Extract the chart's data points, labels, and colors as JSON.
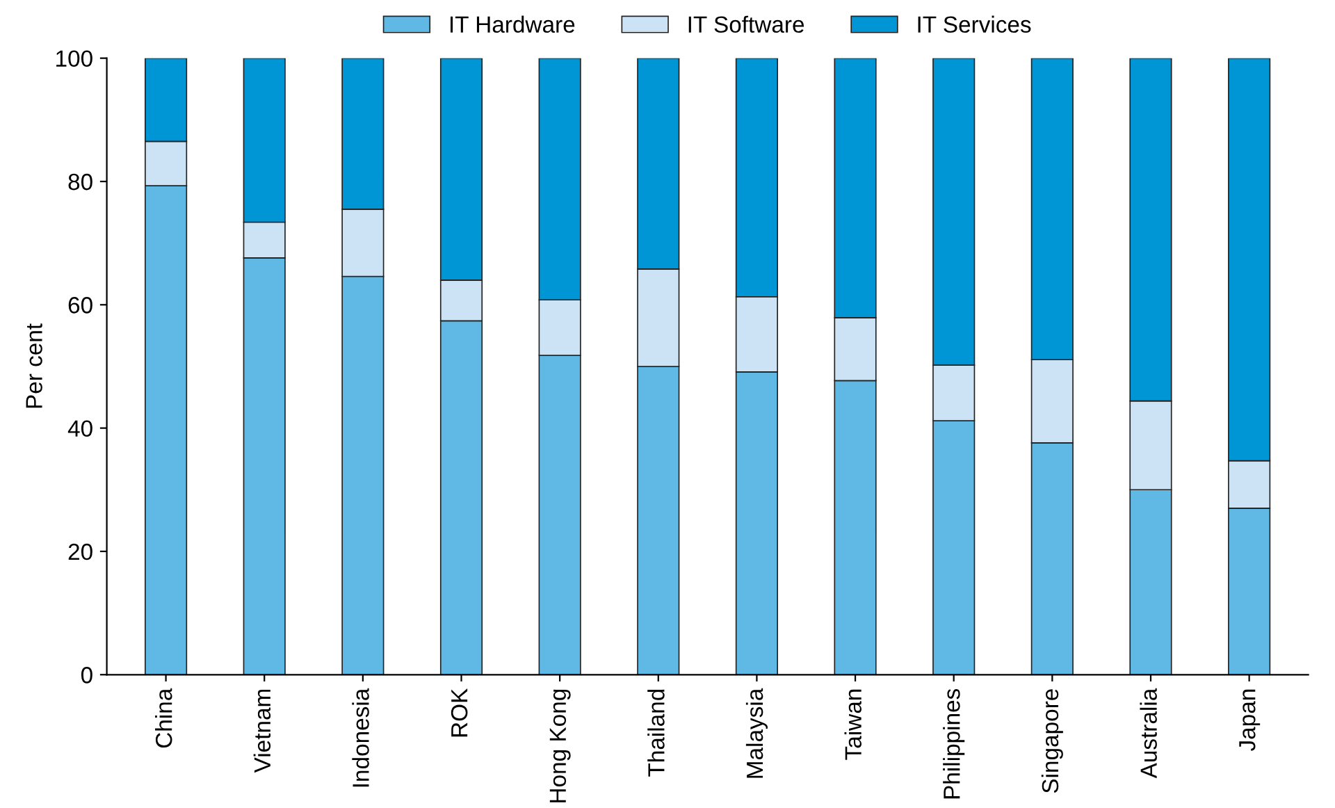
{
  "chart_data": {
    "type": "bar",
    "stacked": true,
    "ylabel": "Per cent",
    "categories": [
      "China",
      "Vietnam",
      "Indonesia",
      "ROK",
      "Hong Kong",
      "Thailand",
      "Malaysia",
      "Taiwan",
      "Philippines",
      "Singapore",
      "Australia",
      "Japan"
    ],
    "series": [
      {
        "name": "IT Hardware",
        "color": "#5fb9e4",
        "values": [
          79.3,
          67.6,
          64.6,
          57.4,
          51.8,
          50.0,
          49.1,
          47.7,
          41.2,
          37.6,
          30.0,
          27.0
        ]
      },
      {
        "name": "IT Software",
        "color": "#cce2f5",
        "values": [
          7.2,
          5.8,
          10.9,
          6.6,
          9.0,
          15.8,
          12.2,
          10.2,
          9.0,
          13.5,
          14.4,
          7.7
        ]
      },
      {
        "name": "IT Services",
        "color": "#0096d6",
        "values": [
          13.5,
          26.6,
          24.5,
          36.0,
          39.2,
          34.2,
          38.7,
          42.1,
          49.8,
          48.9,
          55.6,
          65.3
        ]
      }
    ],
    "ylim": [
      0,
      100
    ],
    "yticks": [
      0,
      20,
      40,
      60,
      80,
      100
    ],
    "grid": false,
    "legend": "top"
  }
}
